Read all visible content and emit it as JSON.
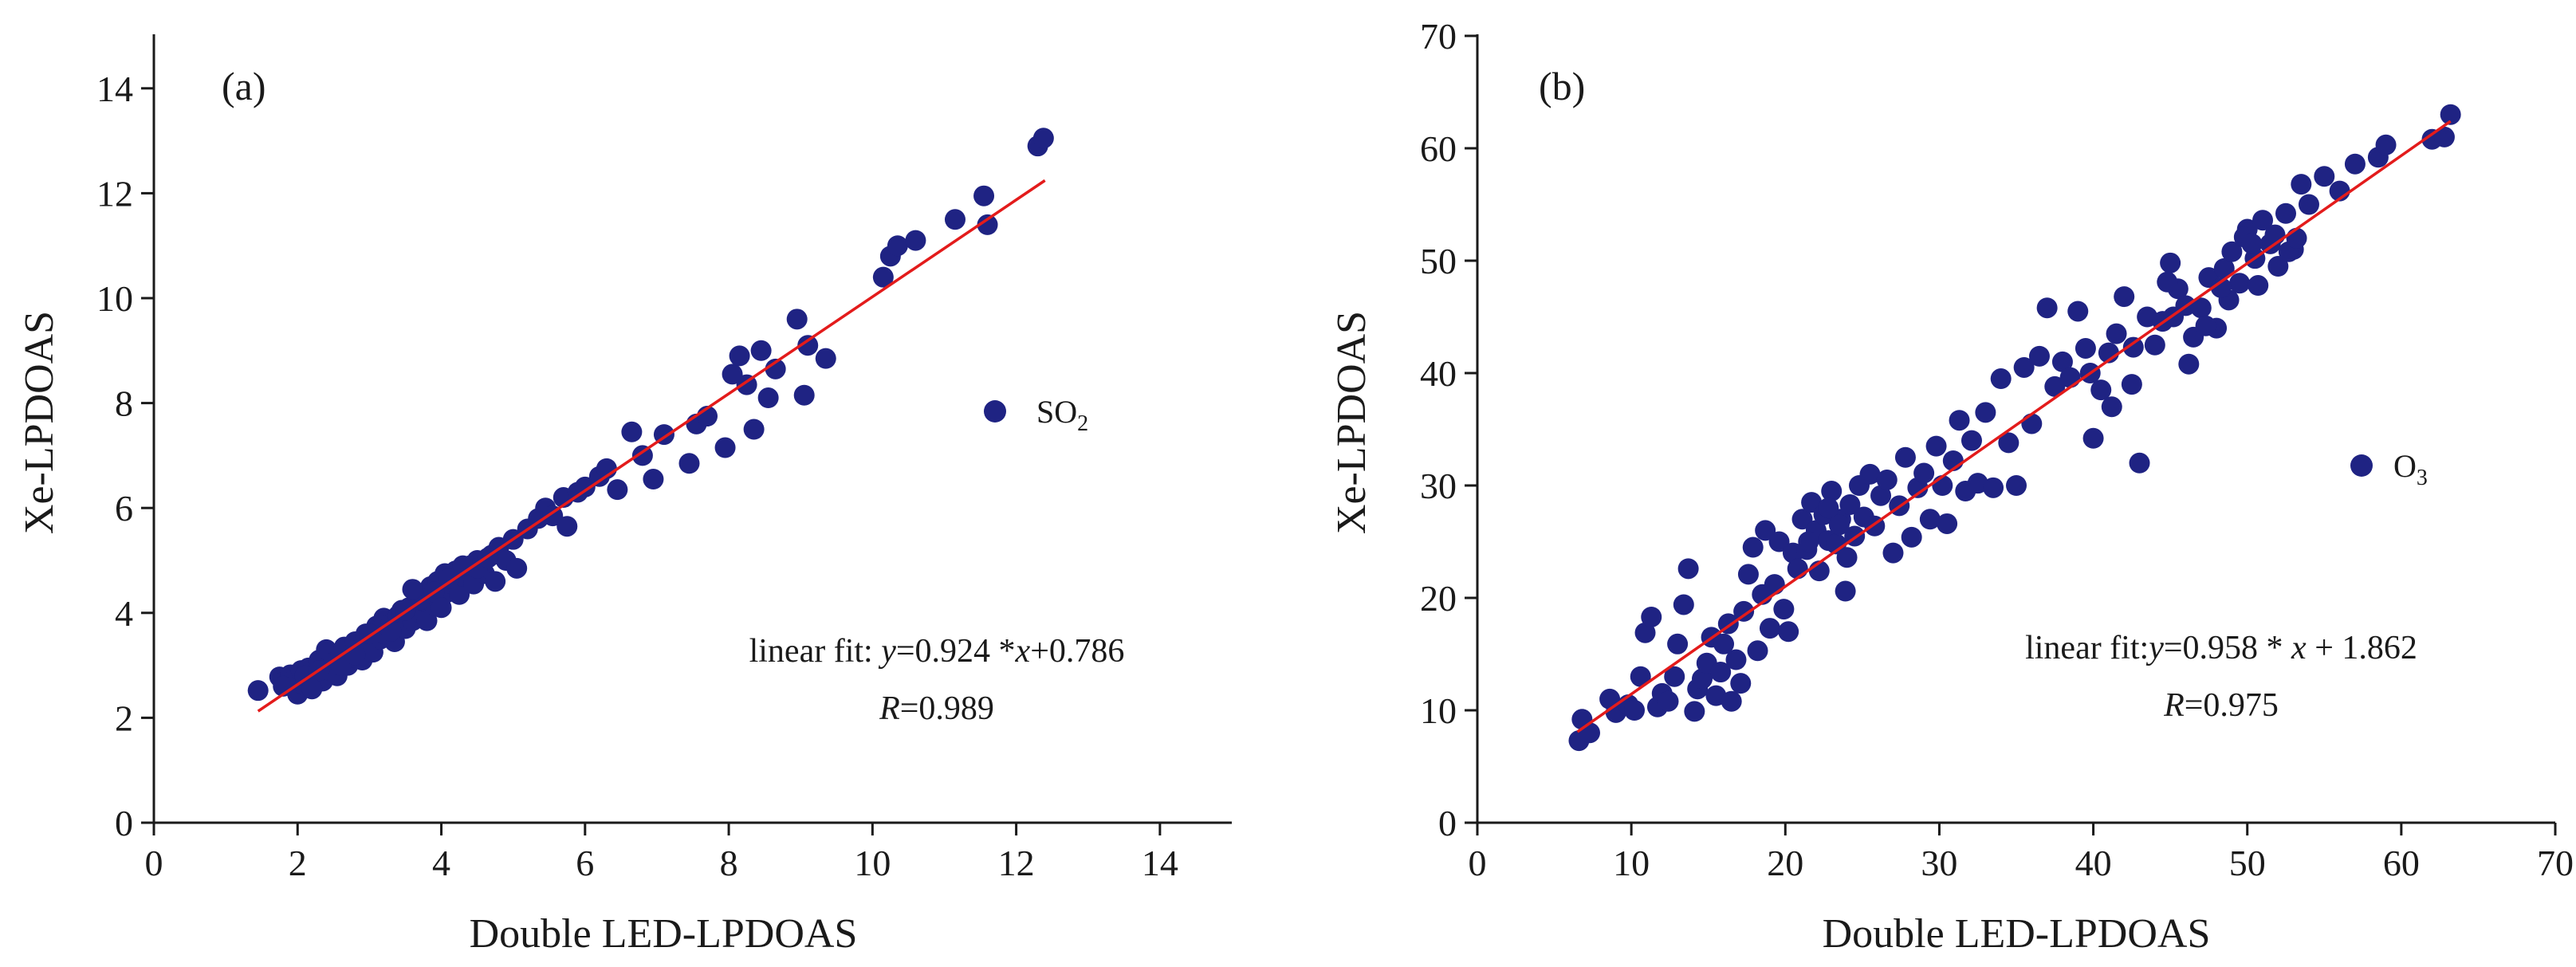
{
  "colors": {
    "points": "#1f2383",
    "fit": "#e31b1b",
    "axis": "#1a1a1a"
  },
  "chart_data": [
    {
      "type": "scatter",
      "panel_label": "(a)",
      "xlabel": "Double LED-LPDOAS",
      "ylabel": "Xe-LPDOAS",
      "xlim": [
        0,
        15
      ],
      "ylim": [
        0,
        15
      ],
      "xticks": [
        "0",
        "2",
        "4",
        "6",
        "8",
        "10",
        "12",
        "14"
      ],
      "yticks": [
        "0",
        "2",
        "4",
        "6",
        "8",
        "10",
        "12",
        "14"
      ],
      "legend": {
        "base": "SO",
        "sub": "2",
        "placement": "right-middle"
      },
      "fit": {
        "prefix": "linear fit: ",
        "y_var": "y",
        "mid": "=0.924 *",
        "x_var": "x",
        "suffix": "+0.786",
        "r_var": "R",
        "r_value": "=0.989",
        "slope": 0.924,
        "intercept": 0.786,
        "x_range": [
          1.45,
          12.4
        ]
      },
      "points": [
        [
          1.45,
          2.52
        ],
        [
          1.75,
          2.78
        ],
        [
          1.8,
          2.68
        ],
        [
          1.9,
          2.82
        ],
        [
          1.95,
          2.72
        ],
        [
          2.0,
          2.45
        ],
        [
          2.05,
          2.9
        ],
        [
          2.1,
          2.62
        ],
        [
          2.15,
          2.95
        ],
        [
          2.2,
          2.75
        ],
        [
          2.25,
          2.85
        ],
        [
          2.3,
          3.1
        ],
        [
          2.35,
          2.7
        ],
        [
          2.4,
          3.3
        ],
        [
          2.45,
          2.9
        ],
        [
          2.5,
          3.05
        ],
        [
          2.55,
          2.8
        ],
        [
          2.6,
          3.2
        ],
        [
          2.65,
          3.35
        ],
        [
          2.7,
          3.0
        ],
        [
          2.75,
          3.15
        ],
        [
          2.8,
          3.45
        ],
        [
          2.85,
          3.3
        ],
        [
          2.9,
          3.1
        ],
        [
          2.95,
          3.6
        ],
        [
          3.0,
          3.4
        ],
        [
          3.05,
          3.25
        ],
        [
          3.1,
          3.75
        ],
        [
          3.15,
          3.5
        ],
        [
          3.2,
          3.9
        ],
        [
          3.25,
          3.6
        ],
        [
          3.3,
          3.8
        ],
        [
          3.35,
          3.45
        ],
        [
          3.4,
          3.95
        ],
        [
          3.45,
          4.05
        ],
        [
          3.5,
          3.7
        ],
        [
          3.55,
          4.1
        ],
        [
          3.6,
          3.85
        ],
        [
          3.65,
          4.2
        ],
        [
          3.7,
          4.0
        ],
        [
          3.75,
          4.35
        ],
        [
          3.8,
          3.85
        ],
        [
          3.85,
          4.5
        ],
        [
          3.9,
          4.15
        ],
        [
          3.95,
          4.6
        ],
        [
          4.0,
          4.3
        ],
        [
          4.05,
          4.75
        ],
        [
          4.1,
          4.4
        ],
        [
          4.15,
          4.55
        ],
        [
          4.2,
          4.8
        ],
        [
          4.25,
          4.35
        ],
        [
          4.3,
          4.7
        ],
        [
          4.4,
          4.9
        ],
        [
          4.45,
          4.55
        ],
        [
          4.5,
          5.0
        ],
        [
          4.6,
          4.75
        ],
        [
          4.7,
          5.1
        ],
        [
          4.75,
          4.6
        ],
        [
          4.8,
          5.25
        ],
        [
          4.9,
          5.0
        ],
        [
          5.0,
          5.4
        ],
        [
          5.05,
          4.85
        ],
        [
          5.2,
          5.6
        ],
        [
          5.35,
          5.8
        ],
        [
          5.45,
          6.0
        ],
        [
          5.55,
          5.85
        ],
        [
          5.7,
          6.2
        ],
        [
          5.75,
          5.65
        ],
        [
          5.9,
          6.3
        ],
        [
          6.0,
          6.4
        ],
        [
          6.2,
          6.6
        ],
        [
          6.3,
          6.75
        ],
        [
          6.45,
          6.35
        ],
        [
          6.65,
          7.45
        ],
        [
          6.8,
          7.0
        ],
        [
          6.95,
          6.55
        ],
        [
          7.1,
          7.4
        ],
        [
          7.45,
          6.85
        ],
        [
          7.55,
          7.6
        ],
        [
          7.7,
          7.75
        ],
        [
          7.95,
          7.15
        ],
        [
          8.05,
          8.55
        ],
        [
          8.15,
          8.9
        ],
        [
          8.25,
          8.35
        ],
        [
          8.35,
          7.5
        ],
        [
          8.45,
          9.0
        ],
        [
          8.55,
          8.1
        ],
        [
          8.65,
          8.65
        ],
        [
          8.95,
          9.6
        ],
        [
          9.05,
          8.15
        ],
        [
          9.1,
          9.1
        ],
        [
          9.35,
          8.85
        ],
        [
          10.15,
          10.4
        ],
        [
          10.25,
          10.8
        ],
        [
          10.35,
          11.0
        ],
        [
          10.6,
          11.1
        ],
        [
          11.15,
          11.5
        ],
        [
          11.55,
          11.95
        ],
        [
          11.6,
          11.4
        ],
        [
          12.3,
          12.9
        ],
        [
          12.38,
          13.05
        ],
        [
          1.8,
          2.6
        ],
        [
          2.1,
          2.8
        ],
        [
          2.6,
          3.0
        ],
        [
          3.2,
          3.6
        ],
        [
          3.7,
          4.25
        ],
        [
          4.1,
          4.65
        ],
        [
          4.5,
          4.85
        ],
        [
          3.0,
          3.6
        ],
        [
          2.3,
          2.9
        ],
        [
          3.5,
          4.05
        ],
        [
          4.3,
          4.9
        ],
        [
          2.8,
          3.2
        ],
        [
          3.9,
          4.4
        ],
        [
          2.2,
          2.55
        ],
        [
          3.3,
          3.65
        ],
        [
          4.0,
          4.1
        ],
        [
          4.65,
          5.05
        ],
        [
          3.6,
          4.45
        ]
      ]
    },
    {
      "type": "scatter",
      "panel_label": "(b)",
      "xlabel": "Double LED-LPDOAS",
      "ylabel": "Xe-LPDOAS",
      "xlim": [
        0,
        70
      ],
      "ylim": [
        0,
        70
      ],
      "xticks": [
        "0",
        "10",
        "20",
        "30",
        "40",
        "50",
        "60",
        "70"
      ],
      "yticks": [
        "0",
        "10",
        "20",
        "30",
        "40",
        "50",
        "60",
        "70"
      ],
      "legend": {
        "base": "O",
        "sub": "3",
        "placement": "right-middle"
      },
      "fit": {
        "prefix": "linear fit:",
        "y_var": "y",
        "mid": "=0.958 * ",
        "x_var": "x",
        "suffix": " + 1.862",
        "r_var": "R",
        "r_value": "=0.975",
        "slope": 0.958,
        "intercept": 1.862,
        "x_range": [
          6.5,
          63.2
        ]
      },
      "points": [
        [
          6.6,
          7.3
        ],
        [
          6.8,
          9.2
        ],
        [
          7.3,
          8.0
        ],
        [
          8.6,
          11.0
        ],
        [
          9.0,
          9.8
        ],
        [
          9.8,
          10.5
        ],
        [
          10.2,
          10.0
        ],
        [
          10.6,
          13.0
        ],
        [
          10.9,
          16.9
        ],
        [
          11.3,
          18.3
        ],
        [
          11.7,
          10.3
        ],
        [
          12.0,
          11.5
        ],
        [
          12.4,
          10.8
        ],
        [
          12.8,
          13.0
        ],
        [
          13.0,
          15.9
        ],
        [
          13.4,
          19.4
        ],
        [
          13.7,
          22.6
        ],
        [
          14.1,
          9.9
        ],
        [
          14.3,
          11.9
        ],
        [
          14.6,
          12.8
        ],
        [
          14.9,
          14.2
        ],
        [
          15.2,
          16.5
        ],
        [
          15.5,
          11.3
        ],
        [
          15.8,
          13.4
        ],
        [
          16.0,
          15.9
        ],
        [
          16.3,
          17.7
        ],
        [
          16.5,
          10.8
        ],
        [
          16.8,
          14.5
        ],
        [
          17.1,
          12.4
        ],
        [
          17.3,
          18.8
        ],
        [
          17.6,
          22.1
        ],
        [
          17.9,
          24.5
        ],
        [
          18.2,
          15.3
        ],
        [
          18.5,
          20.3
        ],
        [
          18.7,
          26.0
        ],
        [
          19.0,
          17.3
        ],
        [
          19.3,
          21.2
        ],
        [
          19.6,
          25.0
        ],
        [
          19.9,
          19.0
        ],
        [
          20.2,
          17.0
        ],
        [
          20.5,
          24.0
        ],
        [
          20.8,
          22.6
        ],
        [
          21.1,
          27.0
        ],
        [
          21.4,
          24.3
        ],
        [
          21.7,
          28.5
        ],
        [
          22.0,
          26.0
        ],
        [
          22.2,
          22.4
        ],
        [
          22.5,
          27.4
        ],
        [
          22.8,
          25.1
        ],
        [
          23.0,
          29.5
        ],
        [
          23.3,
          24.8
        ],
        [
          23.6,
          27.0
        ],
        [
          23.9,
          20.6
        ],
        [
          24.2,
          28.3
        ],
        [
          24.5,
          25.5
        ],
        [
          24.8,
          30.0
        ],
        [
          25.1,
          27.2
        ],
        [
          25.5,
          31.0
        ],
        [
          25.8,
          26.4
        ],
        [
          26.2,
          29.1
        ],
        [
          26.6,
          30.5
        ],
        [
          27.0,
          24.0
        ],
        [
          27.4,
          28.2
        ],
        [
          27.8,
          32.5
        ],
        [
          28.2,
          25.4
        ],
        [
          28.6,
          29.8
        ],
        [
          29.0,
          31.1
        ],
        [
          29.4,
          27.0
        ],
        [
          29.8,
          33.5
        ],
        [
          30.2,
          30.0
        ],
        [
          30.5,
          26.6
        ],
        [
          30.9,
          32.2
        ],
        [
          31.3,
          35.8
        ],
        [
          31.7,
          29.5
        ],
        [
          32.1,
          34.0
        ],
        [
          32.5,
          30.2
        ],
        [
          33.0,
          36.5
        ],
        [
          33.5,
          29.8
        ],
        [
          34.0,
          39.5
        ],
        [
          34.5,
          33.8
        ],
        [
          35.0,
          30.0
        ],
        [
          35.5,
          40.5
        ],
        [
          36.0,
          35.5
        ],
        [
          36.5,
          41.5
        ],
        [
          37.0,
          45.8
        ],
        [
          37.5,
          38.8
        ],
        [
          38.0,
          41.0
        ],
        [
          38.5,
          39.6
        ],
        [
          39.0,
          45.5
        ],
        [
          39.5,
          42.2
        ],
        [
          40.0,
          34.2
        ],
        [
          40.5,
          38.5
        ],
        [
          41.0,
          41.8
        ],
        [
          41.5,
          43.5
        ],
        [
          42.0,
          46.8
        ],
        [
          42.5,
          39.0
        ],
        [
          43.0,
          32.0
        ],
        [
          43.5,
          45.0
        ],
        [
          44.0,
          42.5
        ],
        [
          44.5,
          44.6
        ],
        [
          45.0,
          49.8
        ],
        [
          45.5,
          47.5
        ],
        [
          46.0,
          46.0
        ],
        [
          46.5,
          43.2
        ],
        [
          47.0,
          45.8
        ],
        [
          47.5,
          48.5
        ],
        [
          48.0,
          44.0
        ],
        [
          48.5,
          49.3
        ],
        [
          49.0,
          50.8
        ],
        [
          49.5,
          48.0
        ],
        [
          50.0,
          52.8
        ],
        [
          50.5,
          50.2
        ],
        [
          51.0,
          53.6
        ],
        [
          51.5,
          51.5
        ],
        [
          52.0,
          49.5
        ],
        [
          52.5,
          54.2
        ],
        [
          53.0,
          51.0
        ],
        [
          53.5,
          56.8
        ],
        [
          54.0,
          55.0
        ],
        [
          55.0,
          57.5
        ],
        [
          56.0,
          56.2
        ],
        [
          57.0,
          58.6
        ],
        [
          58.5,
          59.2
        ],
        [
          59.0,
          60.3
        ],
        [
          62.0,
          60.8
        ],
        [
          62.8,
          61.0
        ],
        [
          63.2,
          63.0
        ],
        [
          21.5,
          25.0
        ],
        [
          22.8,
          28.0
        ],
        [
          23.5,
          26.5
        ],
        [
          24.0,
          23.6
        ],
        [
          46.2,
          40.8
        ],
        [
          47.3,
          44.2
        ],
        [
          48.8,
          46.5
        ],
        [
          51.8,
          52.3
        ],
        [
          50.7,
          47.8
        ],
        [
          52.7,
          50.8
        ],
        [
          49.8,
          52.1
        ],
        [
          45.2,
          45.0
        ],
        [
          44.8,
          48.1
        ],
        [
          41.2,
          37.0
        ],
        [
          39.8,
          40.0
        ],
        [
          42.6,
          42.3
        ],
        [
          48.3,
          47.6
        ],
        [
          50.3,
          51.5
        ],
        [
          53.2,
          52.0
        ]
      ]
    }
  ]
}
